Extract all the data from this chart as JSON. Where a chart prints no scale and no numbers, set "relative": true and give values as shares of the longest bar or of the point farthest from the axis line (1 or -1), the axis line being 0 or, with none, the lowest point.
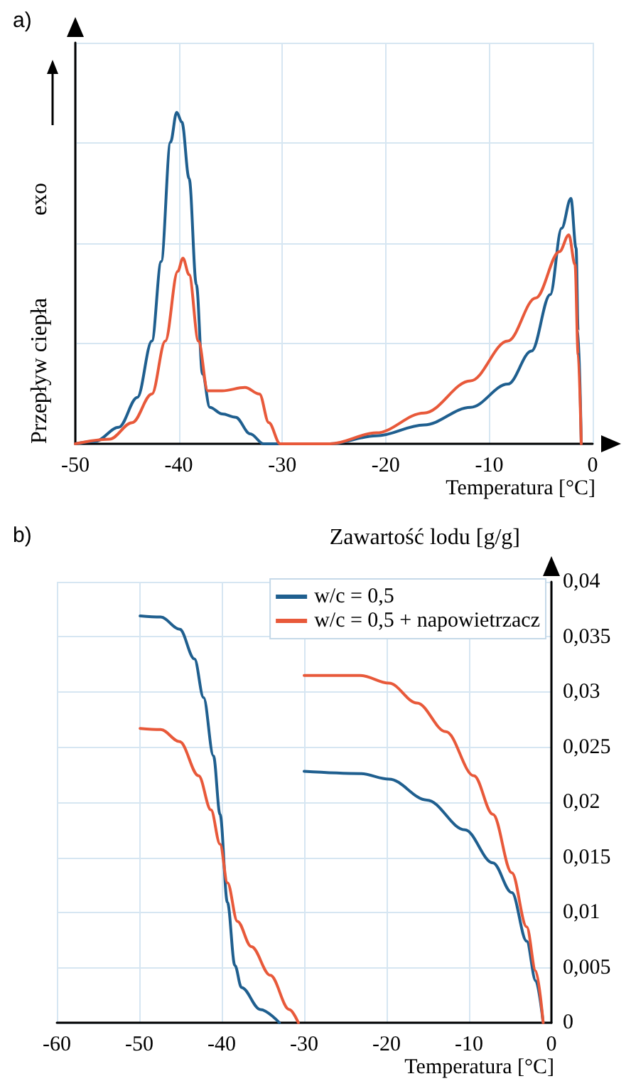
{
  "chart_data": [
    {
      "type": "line",
      "title": "a)",
      "xlabel": "Temperatura [°C]",
      "ylabel": "Przepływ ciepła",
      "annotations": [
        "exo"
      ],
      "relative": true,
      "grid": true,
      "legend": false,
      "marker": "none",
      "line_style": "solid",
      "xlim": [
        -50,
        0
      ],
      "xticks": [
        -50,
        -40,
        -30,
        -20,
        -10,
        0
      ],
      "series": [
        {
          "color": "#1f5f8f",
          "x": [
            -50,
            -48.1,
            -45.8,
            -44,
            -42.6,
            -41.7,
            -40.8,
            -40.2,
            -39.7,
            -39,
            -38.3,
            -37.7,
            -37,
            -35.8,
            -34.5,
            -33.1,
            -31.8,
            -29.9,
            -25.4,
            -20.9,
            -16.3,
            -11.8,
            -8.2,
            -5.9,
            -4.1,
            -3,
            -2.1,
            -1.6,
            -1.4,
            -1.1
          ],
          "values": [
            0,
            0.007,
            0.05,
            0.14,
            0.31,
            0.55,
            0.91,
            1,
            0.97,
            0.8,
            0.48,
            0.21,
            0.11,
            0.09,
            0.08,
            0.03,
            0,
            0,
            0,
            0.024,
            0.057,
            0.11,
            0.18,
            0.28,
            0.45,
            0.65,
            0.74,
            0.59,
            0.34,
            0
          ]
        },
        {
          "color": "#e8593a",
          "x": [
            -50,
            -46.7,
            -44.5,
            -42.6,
            -41.3,
            -40.1,
            -39.6,
            -39,
            -38.1,
            -37.2,
            -35.8,
            -33.6,
            -32.2,
            -31.3,
            -30.2,
            -25.4,
            -20.9,
            -16.3,
            -11.8,
            -8.2,
            -5.5,
            -3.2,
            -2.3,
            -1.7,
            -1.4,
            -1.1
          ],
          "values": [
            0,
            0.014,
            0.064,
            0.15,
            0.31,
            0.52,
            0.56,
            0.51,
            0.31,
            0.16,
            0.16,
            0.17,
            0.15,
            0.064,
            0,
            0,
            0.033,
            0.093,
            0.19,
            0.31,
            0.44,
            0.58,
            0.63,
            0.54,
            0.27,
            0
          ]
        }
      ]
    },
    {
      "type": "line",
      "title": "b)",
      "xlabel": "Temperatura [°C]",
      "ylabel": "Zawartość lodu [g/g]",
      "grid": true,
      "legend": "top right",
      "marker": "none",
      "line_style": "solid",
      "xlim": [
        -60,
        0
      ],
      "xticks": [
        -60,
        -50,
        -40,
        -30,
        -20,
        -10,
        0
      ],
      "ylim": [
        0,
        0.04
      ],
      "yticks": [
        {
          "value": 0,
          "label": "0"
        },
        {
          "value": 0.005,
          "label": "0,005"
        },
        {
          "value": 0.01,
          "label": "0,01"
        },
        {
          "value": 0.015,
          "label": "0,015"
        },
        {
          "value": 0.02,
          "label": "0,02"
        },
        {
          "value": 0.025,
          "label": "0,025"
        },
        {
          "value": 0.03,
          "label": "0,03"
        },
        {
          "value": 0.035,
          "label": "0,035"
        },
        {
          "value": 0.04,
          "label": "0,04"
        }
      ],
      "series": [
        {
          "name": "w/c = 0,5",
          "color": "#1f5f8f",
          "x": [
            -49.9,
            -47.4,
            -45.1,
            -43.3,
            -42.2,
            -41,
            -40.2,
            -39.3,
            -38.4,
            -37.6,
            -35.3,
            -33,
            null,
            -30,
            -23.2,
            -19.7,
            -15.1,
            -10.5,
            -7.1,
            -4.8,
            -3,
            -1.9,
            -1
          ],
          "values": [
            0.0369,
            0.0368,
            0.0357,
            0.033,
            0.0295,
            0.0242,
            0.0189,
            0.0109,
            0.0052,
            0.0032,
            0.0012,
            0,
            null,
            0.0228,
            0.0226,
            0.0221,
            0.0202,
            0.0175,
            0.0145,
            0.0118,
            0.0074,
            0.0038,
            0
          ]
        },
        {
          "name": "w/c = 0,5 + napowietrzacz",
          "color": "#e8593a",
          "x": [
            -49.9,
            -47.4,
            -45.1,
            -42.8,
            -41.3,
            -40.2,
            -39.3,
            -38.1,
            -36.4,
            -34.1,
            -31.8,
            -30.7,
            null,
            -30,
            -23.2,
            -19.7,
            -16.3,
            -12.8,
            -9.4,
            -7.1,
            -4.8,
            -3,
            -1.9,
            -1
          ],
          "values": [
            0.0267,
            0.0266,
            0.0255,
            0.0224,
            0.0193,
            0.0162,
            0.0127,
            0.0092,
            0.0069,
            0.0043,
            0.0012,
            0,
            null,
            0.0315,
            0.0315,
            0.0308,
            0.029,
            0.0264,
            0.0224,
            0.0189,
            0.0136,
            0.0087,
            0.0047,
            0
          ]
        }
      ]
    }
  ]
}
